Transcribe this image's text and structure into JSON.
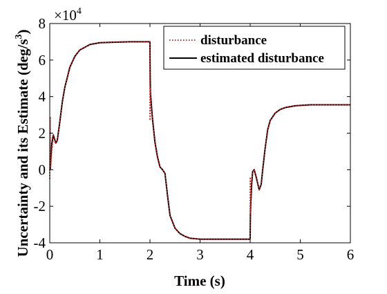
{
  "chart_data": {
    "type": "line",
    "xlabel": "Time (s)",
    "ylabel": "Uncertainty and its Estimate (deg/s",
    "ylabel_superscript": "3",
    "ylabel_close": ")",
    "xlim": [
      0,
      6
    ],
    "ylim": [
      -40000,
      80000
    ],
    "x_ticks": [
      0,
      1,
      2,
      3,
      4,
      5,
      6
    ],
    "x_tick_labels": [
      "0",
      "1",
      "2",
      "3",
      "4",
      "5",
      "6"
    ],
    "y_ticks": [
      -40000,
      -20000,
      0,
      20000,
      40000,
      60000,
      80000
    ],
    "y_tick_labels": [
      "-4",
      "-2",
      "0",
      "2",
      "4",
      "6",
      "8"
    ],
    "y_multiplier_base": "×10",
    "y_multiplier_exponent": "4",
    "grid": false,
    "legend_position": "top-right",
    "legend": {
      "items": [
        {
          "label": "disturbance",
          "color": "#e32020",
          "style": "dotted"
        },
        {
          "label": "estimated disturbance",
          "color": "#000000",
          "style": "solid"
        }
      ]
    },
    "series": [
      {
        "name": "disturbance",
        "color": "#e32020",
        "style": "dotted",
        "x": [
          0,
          0.01,
          0.015,
          0.02,
          0.04,
          0.07,
          0.1,
          0.12,
          0.15,
          0.2,
          0.25,
          0.3,
          0.4,
          0.5,
          0.6,
          0.8,
          1.0,
          1.3,
          1.6,
          1.999,
          2.0,
          2.002,
          2.005,
          2.01,
          2.05,
          2.1,
          2.15,
          2.2,
          2.25,
          2.3,
          2.35,
          2.4,
          2.5,
          2.6,
          2.7,
          2.8,
          3.0,
          3.2,
          3.5,
          3.999,
          4.0,
          4.002,
          4.005,
          4.01,
          4.03,
          4.05,
          4.08,
          4.12,
          4.18,
          4.22,
          4.25,
          4.3,
          4.35,
          4.4,
          4.5,
          4.6,
          4.7,
          4.9,
          5.2,
          5.5,
          6.0
        ],
        "y": [
          -5000,
          29000,
          5000,
          2000,
          10000,
          18500,
          16000,
          14500,
          16000,
          26000,
          37000,
          45000,
          56000,
          62000,
          65500,
          68500,
          69500,
          69800,
          70000,
          70000,
          65000,
          27000,
          45000,
          40000,
          28000,
          15000,
          7000,
          1500,
          0,
          -2000,
          -14000,
          -25000,
          -32000,
          -35000,
          -36500,
          -37500,
          -38000,
          -38000,
          -38000,
          -38000,
          -33000,
          -4000,
          -24000,
          -20000,
          -8000,
          -1000,
          0,
          -4000,
          -11000,
          -8000,
          0,
          12000,
          22000,
          27000,
          31000,
          33000,
          34000,
          35000,
          35500,
          35500,
          35500
        ]
      },
      {
        "name": "estimated disturbance",
        "color": "#000000",
        "style": "solid",
        "x": [
          0,
          0.01,
          0.02,
          0.04,
          0.07,
          0.1,
          0.12,
          0.15,
          0.2,
          0.25,
          0.3,
          0.4,
          0.5,
          0.6,
          0.8,
          1.0,
          1.3,
          1.6,
          1.999,
          2.0,
          2.005,
          2.01,
          2.05,
          2.1,
          2.15,
          2.2,
          2.25,
          2.3,
          2.35,
          2.4,
          2.5,
          2.6,
          2.7,
          2.8,
          3.0,
          3.2,
          3.5,
          3.999,
          4.0,
          4.005,
          4.01,
          4.03,
          4.05,
          4.08,
          4.12,
          4.18,
          4.22,
          4.25,
          4.3,
          4.35,
          4.4,
          4.5,
          4.6,
          4.7,
          4.9,
          5.2,
          5.5,
          6.0
        ],
        "y": [
          0,
          500,
          6000,
          14000,
          19000,
          16500,
          14500,
          16000,
          26000,
          37000,
          45000,
          56000,
          62000,
          65500,
          68500,
          69500,
          69800,
          70000,
          70000,
          67000,
          50000,
          42000,
          28000,
          15000,
          7000,
          1500,
          0,
          -2000,
          -14000,
          -25000,
          -32000,
          -35000,
          -36500,
          -37500,
          -38000,
          -38000,
          -38000,
          -38000,
          -35000,
          -25000,
          -20000,
          -8000,
          -1000,
          0,
          -4000,
          -11000,
          -8000,
          0,
          12000,
          22000,
          27000,
          31000,
          33000,
          34000,
          35000,
          35500,
          35500,
          35500
        ]
      }
    ]
  }
}
